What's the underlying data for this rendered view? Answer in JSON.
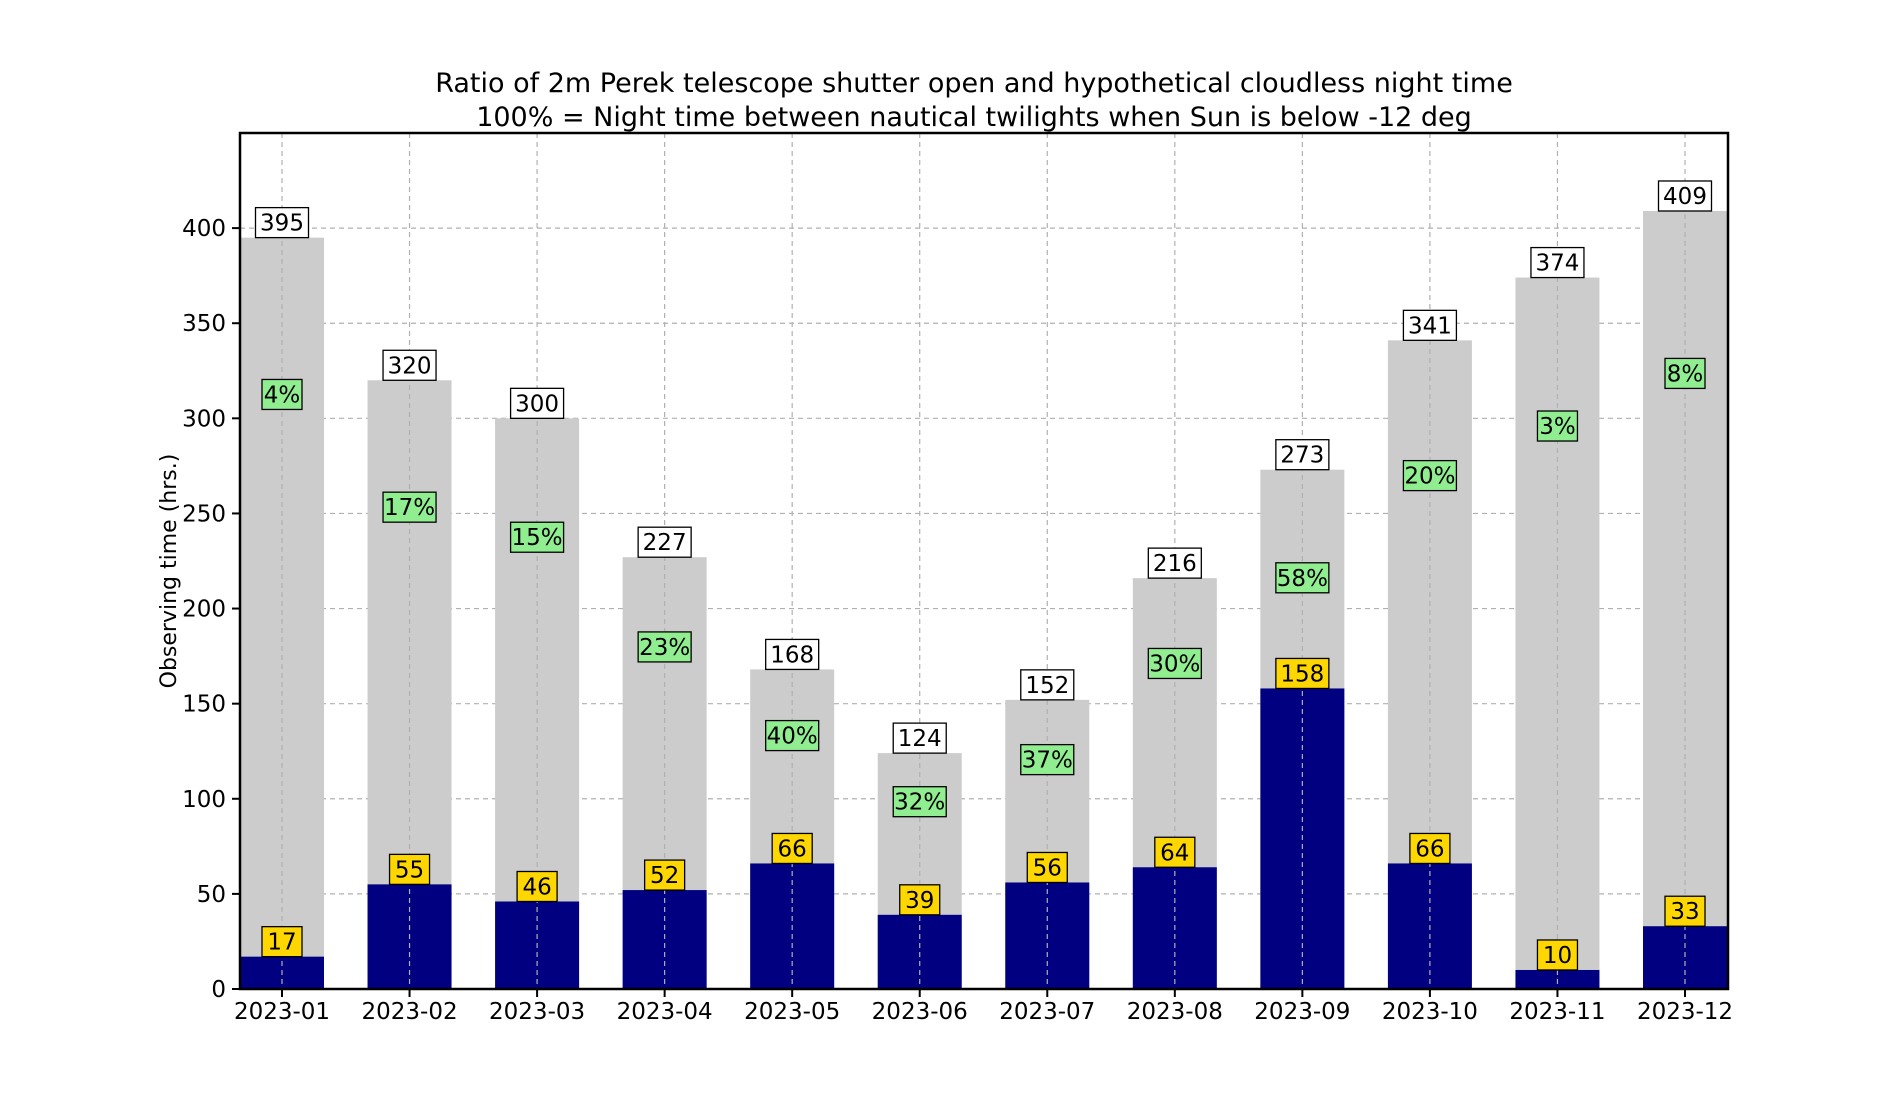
{
  "colors": {
    "night_bar": "#cccccc",
    "open_bar": "#000080",
    "total_label_bg": "#ffffff",
    "open_label_bg": "#ffd700",
    "pct_label_bg": "#90ee90",
    "grid": "#b0b0b0"
  },
  "chart_data": {
    "type": "bar",
    "title": "Ratio of 2m Perek telescope shutter open and hypothetical cloudless  night time",
    "subtitle": "100% = Night time  between nautical twilights when Sun is below -12 deg",
    "xlabel": "",
    "ylabel": "Observing time (hrs.)",
    "ylim": [
      0,
      450
    ],
    "yticks": [
      0,
      50,
      100,
      150,
      200,
      250,
      300,
      350,
      400
    ],
    "grid": true,
    "categories": [
      "2023-01",
      "2023-02",
      "2023-03",
      "2023-04",
      "2023-05",
      "2023-06",
      "2023-07",
      "2023-08",
      "2023-09",
      "2023-10",
      "2023-11",
      "2023-12"
    ],
    "series": [
      {
        "values": [
          395,
          320,
          300,
          227,
          168,
          124,
          152,
          216,
          273,
          341,
          374,
          409
        ]
      },
      {
        "values": [
          17,
          55,
          46,
          52,
          66,
          39,
          56,
          64,
          158,
          66,
          10,
          33
        ]
      }
    ],
    "total_labels": [
      "395",
      "320",
      "300",
      "227",
      "168",
      "124",
      "152",
      "216",
      "273",
      "341",
      "374",
      "409"
    ],
    "open_labels": [
      "17",
      "55",
      "46",
      "52",
      "66",
      "39",
      "56",
      "64",
      "158",
      "66",
      "10",
      "33"
    ],
    "ratio_labels": [
      "4%",
      "17%",
      "15%",
      "23%",
      "40%",
      "32%",
      "37%",
      "30%",
      "58%",
      "20%",
      "3%",
      "8%"
    ]
  }
}
